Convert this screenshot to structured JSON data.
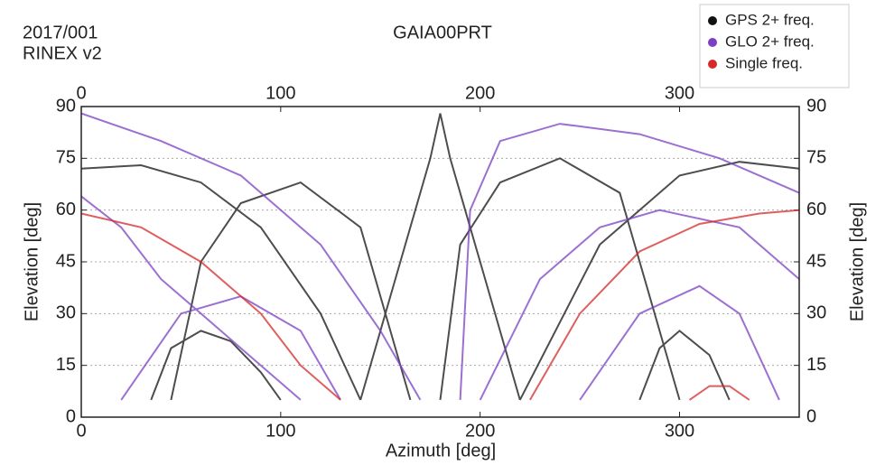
{
  "chart_data": {
    "type": "line",
    "title": "GAIA00PRT",
    "date_label": "2017/001",
    "format_label": "RINEX v2",
    "x_label": "Azimuth [deg]",
    "y_label": "Elevation [deg]",
    "xlim": [
      0,
      360
    ],
    "xticks": [
      0,
      100,
      200,
      300
    ],
    "ylim": [
      0,
      90
    ],
    "yticks": [
      0,
      15,
      30,
      45,
      60,
      75,
      90
    ],
    "grid": true,
    "legend": "top-right",
    "series": [
      {
        "name": "GPS 2+ freq.",
        "color": "#111111",
        "x": [
          35,
          45,
          60,
          75,
          90,
          100,
          null,
          0,
          30,
          60,
          90,
          120,
          140,
          null,
          45,
          60,
          80,
          110,
          140,
          165,
          null,
          140,
          160,
          175,
          180,
          185,
          200,
          220,
          null,
          180,
          190,
          210,
          240,
          270,
          300,
          null,
          280,
          290,
          300,
          315,
          325,
          null,
          220,
          260,
          300,
          330,
          360
        ],
        "values": [
          5,
          20,
          25,
          22,
          13,
          5,
          null,
          72,
          73,
          68,
          55,
          30,
          5,
          null,
          5,
          45,
          62,
          68,
          55,
          5,
          null,
          5,
          45,
          75,
          88,
          75,
          45,
          5,
          null,
          5,
          50,
          68,
          75,
          65,
          5,
          null,
          5,
          20,
          25,
          18,
          5,
          null,
          5,
          50,
          70,
          74,
          72
        ]
      },
      {
        "name": "GLO 2+ freq.",
        "color": "#7b3fc4",
        "x": [
          0,
          20,
          40,
          60,
          80,
          110,
          null,
          20,
          50,
          80,
          110,
          130,
          null,
          0,
          40,
          80,
          120,
          150,
          170,
          null,
          190,
          195,
          210,
          240,
          280,
          320,
          360,
          null,
          250,
          280,
          310,
          330,
          350,
          null,
          200,
          230,
          260,
          290,
          330,
          360
        ],
        "values": [
          64,
          55,
          40,
          30,
          20,
          5,
          null,
          5,
          30,
          35,
          25,
          5,
          null,
          88,
          80,
          70,
          50,
          25,
          5,
          null,
          5,
          60,
          80,
          85,
          82,
          75,
          65,
          null,
          5,
          30,
          38,
          30,
          5,
          null,
          5,
          40,
          55,
          60,
          55,
          40
        ]
      },
      {
        "name": "Single freq.",
        "color": "#d42a2a",
        "x": [
          0,
          30,
          60,
          90,
          110,
          130,
          null,
          225,
          250,
          280,
          310,
          340,
          360,
          null,
          305,
          315,
          325,
          335
        ],
        "values": [
          59,
          55,
          45,
          30,
          15,
          5,
          null,
          5,
          30,
          48,
          56,
          59,
          60,
          null,
          5,
          9,
          9,
          5
        ]
      }
    ]
  }
}
